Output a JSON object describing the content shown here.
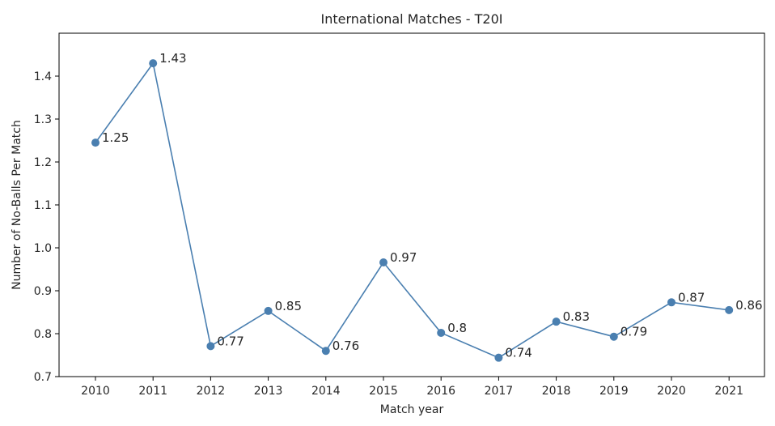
{
  "chart_data": {
    "type": "line",
    "title": "International Matches - T20I",
    "xlabel": "Match year",
    "ylabel": "Number of No-Balls Per Match",
    "x": [
      "2010",
      "2011",
      "2012",
      "2013",
      "2014",
      "2015",
      "2016",
      "2017",
      "2018",
      "2019",
      "2020",
      "2021"
    ],
    "series": [
      {
        "values": [
          1.245,
          1.43,
          0.771,
          0.853,
          0.76,
          0.966,
          0.802,
          0.744,
          0.828,
          0.793,
          0.873,
          0.855
        ],
        "labels": [
          "1.25",
          "1.43",
          "0.77",
          "0.85",
          "0.76",
          "0.97",
          "0.8",
          "0.74",
          "0.83",
          "0.79",
          "0.87",
          "0.86"
        ],
        "color": "#4a7fb0"
      }
    ],
    "ylim": [
      0.7,
      1.5
    ],
    "yticks": [
      "0.7",
      "0.8",
      "0.9",
      "1.0",
      "1.1",
      "1.2",
      "1.3",
      "1.4"
    ],
    "grid": false,
    "legend": "none"
  }
}
